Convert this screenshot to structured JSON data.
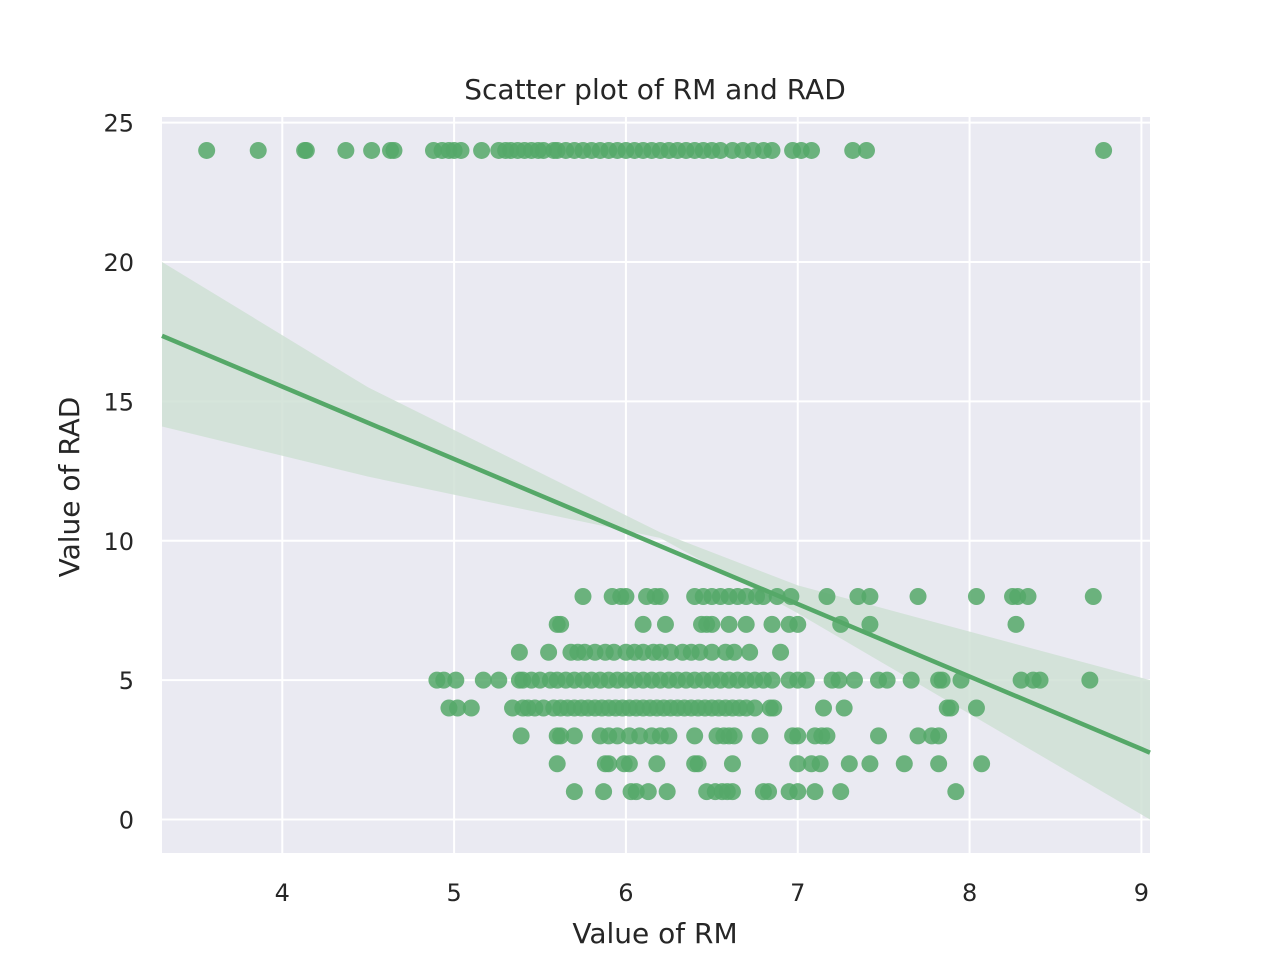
{
  "chart_data": {
    "type": "scatter",
    "title": "Scatter plot of RM and RAD",
    "xlabel": "Value of RM",
    "ylabel": "Value of RAD",
    "xlim": [
      3.3,
      9.05
    ],
    "ylim": [
      -1.2,
      25.2
    ],
    "xticks": [
      4,
      5,
      6,
      7,
      8,
      9
    ],
    "yticks": [
      0,
      5,
      10,
      15,
      20,
      25
    ],
    "grid": true,
    "colors": {
      "background": "#eaeaf2",
      "grid": "#ffffff",
      "points": "#55a868",
      "line": "#55a868",
      "band": "#cfe0d5"
    },
    "regression": {
      "x": [
        3.3,
        9.05
      ],
      "y": [
        17.35,
        2.4
      ]
    },
    "confidence_band": {
      "x": [
        3.3,
        4.5,
        6.2,
        7.0,
        9.05
      ],
      "upper": [
        20.0,
        15.5,
        10.3,
        8.4,
        5.0
      ],
      "lower": [
        14.1,
        12.3,
        10.1,
        7.4,
        0.0
      ]
    },
    "series": [
      {
        "points": [
          [
            3.56,
            24
          ],
          [
            3.86,
            24
          ],
          [
            4.13,
            24
          ],
          [
            4.14,
            24
          ],
          [
            4.37,
            24
          ],
          [
            4.52,
            24
          ],
          [
            4.63,
            24
          ],
          [
            4.65,
            24
          ],
          [
            4.88,
            24
          ],
          [
            4.93,
            24
          ],
          [
            4.97,
            24
          ],
          [
            5.0,
            24
          ],
          [
            5.04,
            24
          ],
          [
            5.16,
            24
          ],
          [
            5.26,
            24
          ],
          [
            5.3,
            24
          ],
          [
            5.33,
            24
          ],
          [
            5.37,
            24
          ],
          [
            5.41,
            24
          ],
          [
            5.45,
            24
          ],
          [
            5.49,
            24
          ],
          [
            5.52,
            24
          ],
          [
            5.58,
            24
          ],
          [
            5.6,
            24
          ],
          [
            5.65,
            24
          ],
          [
            5.7,
            24
          ],
          [
            5.75,
            24
          ],
          [
            5.8,
            24
          ],
          [
            5.85,
            24
          ],
          [
            5.9,
            24
          ],
          [
            5.95,
            24
          ],
          [
            6.0,
            24
          ],
          [
            6.05,
            24
          ],
          [
            6.1,
            24
          ],
          [
            6.15,
            24
          ],
          [
            6.2,
            24
          ],
          [
            6.25,
            24
          ],
          [
            6.3,
            24
          ],
          [
            6.35,
            24
          ],
          [
            6.4,
            24
          ],
          [
            6.45,
            24
          ],
          [
            6.5,
            24
          ],
          [
            6.55,
            24
          ],
          [
            6.62,
            24
          ],
          [
            6.68,
            24
          ],
          [
            6.74,
            24
          ],
          [
            6.8,
            24
          ],
          [
            6.85,
            24
          ],
          [
            6.97,
            24
          ],
          [
            7.02,
            24
          ],
          [
            7.08,
            24
          ],
          [
            7.32,
            24
          ],
          [
            7.4,
            24
          ],
          [
            8.78,
            24
          ],
          [
            5.75,
            8
          ],
          [
            5.92,
            8
          ],
          [
            5.97,
            8
          ],
          [
            6.0,
            8
          ],
          [
            6.12,
            8
          ],
          [
            6.17,
            8
          ],
          [
            6.2,
            8
          ],
          [
            6.4,
            8
          ],
          [
            6.45,
            8
          ],
          [
            6.5,
            8
          ],
          [
            6.55,
            8
          ],
          [
            6.6,
            8
          ],
          [
            6.65,
            8
          ],
          [
            6.7,
            8
          ],
          [
            6.76,
            8
          ],
          [
            6.8,
            8
          ],
          [
            6.88,
            8
          ],
          [
            6.96,
            8
          ],
          [
            7.17,
            8
          ],
          [
            7.35,
            8
          ],
          [
            7.42,
            8
          ],
          [
            7.7,
            8
          ],
          [
            8.04,
            8
          ],
          [
            8.25,
            8
          ],
          [
            8.28,
            8
          ],
          [
            8.34,
            8
          ],
          [
            8.72,
            8
          ],
          [
            5.6,
            7
          ],
          [
            5.62,
            7
          ],
          [
            6.1,
            7
          ],
          [
            6.23,
            7
          ],
          [
            6.44,
            7
          ],
          [
            6.47,
            7
          ],
          [
            6.5,
            7
          ],
          [
            6.6,
            7
          ],
          [
            6.7,
            7
          ],
          [
            6.85,
            7
          ],
          [
            6.95,
            7
          ],
          [
            7.0,
            7
          ],
          [
            7.25,
            7
          ],
          [
            7.42,
            7
          ],
          [
            8.27,
            7
          ],
          [
            5.38,
            6
          ],
          [
            5.55,
            6
          ],
          [
            5.68,
            6
          ],
          [
            5.72,
            6
          ],
          [
            5.76,
            6
          ],
          [
            5.82,
            6
          ],
          [
            5.88,
            6
          ],
          [
            5.93,
            6
          ],
          [
            6.0,
            6
          ],
          [
            6.05,
            6
          ],
          [
            6.1,
            6
          ],
          [
            6.16,
            6
          ],
          [
            6.2,
            6
          ],
          [
            6.26,
            6
          ],
          [
            6.33,
            6
          ],
          [
            6.38,
            6
          ],
          [
            6.43,
            6
          ],
          [
            6.5,
            6
          ],
          [
            6.58,
            6
          ],
          [
            6.63,
            6
          ],
          [
            6.72,
            6
          ],
          [
            6.9,
            6
          ],
          [
            4.9,
            5
          ],
          [
            4.94,
            5
          ],
          [
            5.01,
            5
          ],
          [
            5.17,
            5
          ],
          [
            5.26,
            5
          ],
          [
            5.38,
            5
          ],
          [
            5.4,
            5
          ],
          [
            5.45,
            5
          ],
          [
            5.5,
            5
          ],
          [
            5.56,
            5
          ],
          [
            5.6,
            5
          ],
          [
            5.65,
            5
          ],
          [
            5.7,
            5
          ],
          [
            5.75,
            5
          ],
          [
            5.8,
            5
          ],
          [
            5.85,
            5
          ],
          [
            5.9,
            5
          ],
          [
            5.95,
            5
          ],
          [
            6.0,
            5
          ],
          [
            6.05,
            5
          ],
          [
            6.1,
            5
          ],
          [
            6.15,
            5
          ],
          [
            6.2,
            5
          ],
          [
            6.25,
            5
          ],
          [
            6.3,
            5
          ],
          [
            6.35,
            5
          ],
          [
            6.4,
            5
          ],
          [
            6.45,
            5
          ],
          [
            6.5,
            5
          ],
          [
            6.55,
            5
          ],
          [
            6.6,
            5
          ],
          [
            6.65,
            5
          ],
          [
            6.7,
            5
          ],
          [
            6.75,
            5
          ],
          [
            6.8,
            5
          ],
          [
            6.85,
            5
          ],
          [
            6.95,
            5
          ],
          [
            7.0,
            5
          ],
          [
            7.05,
            5
          ],
          [
            7.2,
            5
          ],
          [
            7.24,
            5
          ],
          [
            7.33,
            5
          ],
          [
            7.47,
            5
          ],
          [
            7.52,
            5
          ],
          [
            7.66,
            5
          ],
          [
            7.82,
            5
          ],
          [
            7.84,
            5
          ],
          [
            7.95,
            5
          ],
          [
            8.3,
            5
          ],
          [
            8.37,
            5
          ],
          [
            8.41,
            5
          ],
          [
            8.7,
            5
          ],
          [
            4.97,
            4
          ],
          [
            5.02,
            4
          ],
          [
            5.1,
            4
          ],
          [
            5.34,
            4
          ],
          [
            5.4,
            4
          ],
          [
            5.43,
            4
          ],
          [
            5.47,
            4
          ],
          [
            5.52,
            4
          ],
          [
            5.58,
            4
          ],
          [
            5.62,
            4
          ],
          [
            5.66,
            4
          ],
          [
            5.7,
            4
          ],
          [
            5.74,
            4
          ],
          [
            5.78,
            4
          ],
          [
            5.82,
            4
          ],
          [
            5.86,
            4
          ],
          [
            5.9,
            4
          ],
          [
            5.94,
            4
          ],
          [
            5.98,
            4
          ],
          [
            6.02,
            4
          ],
          [
            6.06,
            4
          ],
          [
            6.1,
            4
          ],
          [
            6.14,
            4
          ],
          [
            6.18,
            4
          ],
          [
            6.22,
            4
          ],
          [
            6.26,
            4
          ],
          [
            6.3,
            4
          ],
          [
            6.34,
            4
          ],
          [
            6.38,
            4
          ],
          [
            6.42,
            4
          ],
          [
            6.46,
            4
          ],
          [
            6.5,
            4
          ],
          [
            6.54,
            4
          ],
          [
            6.58,
            4
          ],
          [
            6.62,
            4
          ],
          [
            6.66,
            4
          ],
          [
            6.7,
            4
          ],
          [
            6.75,
            4
          ],
          [
            6.84,
            4
          ],
          [
            6.86,
            4
          ],
          [
            7.15,
            4
          ],
          [
            7.27,
            4
          ],
          [
            7.87,
            4
          ],
          [
            7.89,
            4
          ],
          [
            8.04,
            4
          ],
          [
            5.39,
            3
          ],
          [
            5.6,
            3
          ],
          [
            5.62,
            3
          ],
          [
            5.7,
            3
          ],
          [
            5.85,
            3
          ],
          [
            5.9,
            3
          ],
          [
            5.95,
            3
          ],
          [
            6.02,
            3
          ],
          [
            6.08,
            3
          ],
          [
            6.15,
            3
          ],
          [
            6.2,
            3
          ],
          [
            6.25,
            3
          ],
          [
            6.4,
            3
          ],
          [
            6.53,
            3
          ],
          [
            6.57,
            3
          ],
          [
            6.6,
            3
          ],
          [
            6.63,
            3
          ],
          [
            6.78,
            3
          ],
          [
            6.97,
            3
          ],
          [
            7.0,
            3
          ],
          [
            7.1,
            3
          ],
          [
            7.14,
            3
          ],
          [
            7.17,
            3
          ],
          [
            7.47,
            3
          ],
          [
            7.7,
            3
          ],
          [
            7.78,
            3
          ],
          [
            7.82,
            3
          ],
          [
            5.6,
            2
          ],
          [
            5.88,
            2
          ],
          [
            5.9,
            2
          ],
          [
            5.99,
            2
          ],
          [
            6.02,
            2
          ],
          [
            6.18,
            2
          ],
          [
            6.4,
            2
          ],
          [
            6.42,
            2
          ],
          [
            6.62,
            2
          ],
          [
            7.0,
            2
          ],
          [
            7.08,
            2
          ],
          [
            7.13,
            2
          ],
          [
            7.3,
            2
          ],
          [
            7.42,
            2
          ],
          [
            7.62,
            2
          ],
          [
            7.82,
            2
          ],
          [
            8.07,
            2
          ],
          [
            5.7,
            1
          ],
          [
            5.87,
            1
          ],
          [
            6.03,
            1
          ],
          [
            6.06,
            1
          ],
          [
            6.13,
            1
          ],
          [
            6.24,
            1
          ],
          [
            6.47,
            1
          ],
          [
            6.52,
            1
          ],
          [
            6.56,
            1
          ],
          [
            6.59,
            1
          ],
          [
            6.62,
            1
          ],
          [
            6.8,
            1
          ],
          [
            6.83,
            1
          ],
          [
            6.95,
            1
          ],
          [
            7.0,
            1
          ],
          [
            7.1,
            1
          ],
          [
            7.25,
            1
          ],
          [
            7.92,
            1
          ]
        ]
      }
    ]
  }
}
